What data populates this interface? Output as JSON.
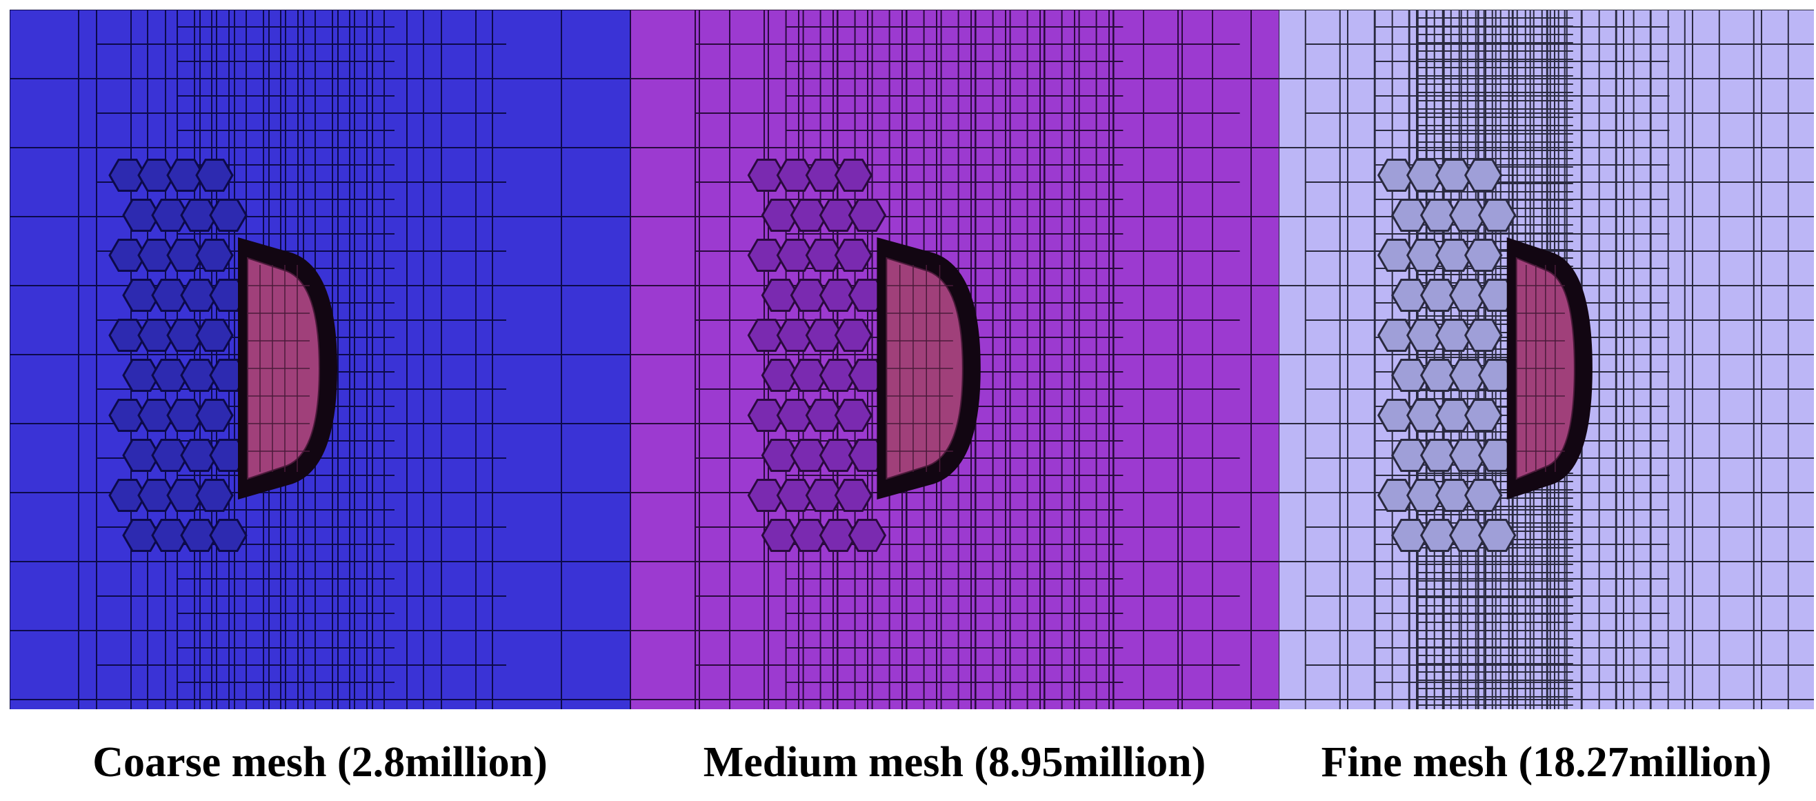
{
  "panels": [
    {
      "caption": "Coarse mesh (2.8million)",
      "bg": "#3a33d6",
      "line": "#0c0a4a",
      "poly": "#2d2ab0",
      "inner": "#a0407a",
      "level": "coarse"
    },
    {
      "caption": "Medium mesh (8.95million)",
      "bg": "#9c3ad0",
      "line": "#2a0a3e",
      "poly": "#7a2ab0",
      "inner": "#a0407a",
      "level": "medium"
    },
    {
      "caption": "Fine mesh (18.27million)",
      "bg": "#bcb6f6",
      "line": "#2a2a40",
      "poly": "#9f9fd8",
      "inner": "#a0407a",
      "level": "fine"
    }
  ]
}
